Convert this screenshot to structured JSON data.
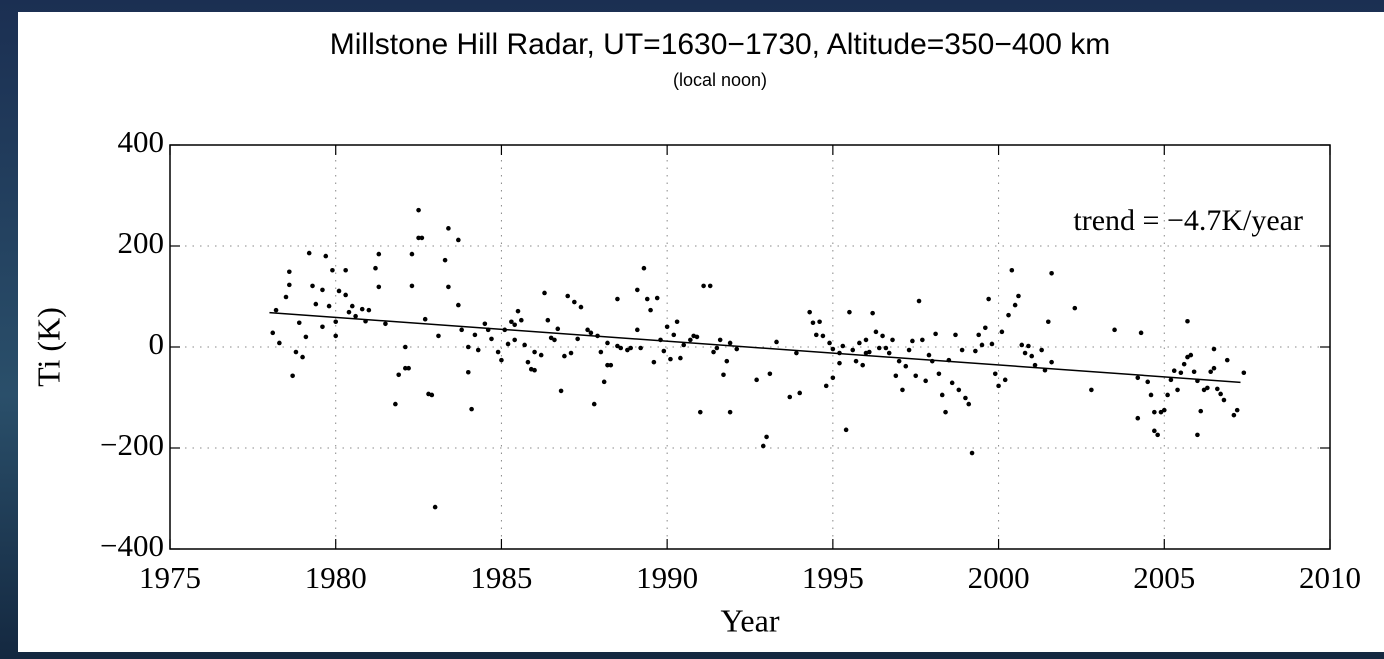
{
  "chart_data": {
    "type": "scatter",
    "title": "Millstone Hill Radar, UT=1630−1730, Altitude=350−400 km",
    "subtitle": "(local noon)",
    "x_label": "Year",
    "y_label": "Ti (K)",
    "annotation": "trend = −4.7K/year",
    "color": "#000000",
    "grid": true,
    "xlim": [
      1975,
      2010
    ],
    "xticks": [
      1975,
      1980,
      1985,
      1990,
      1995,
      2000,
      2005,
      2010
    ],
    "ylim": [
      -400,
      400
    ],
    "yticks": [
      {
        "value": -400,
        "label": "−400"
      },
      {
        "value": -200,
        "label": "−200"
      },
      0,
      200,
      400
    ],
    "x": [
      1978.1,
      1978.2,
      1978.3,
      1978.5,
      1978.6,
      1978.6,
      1978.7,
      1978.8,
      1978.9,
      1979.0,
      1979.1,
      1979.2,
      1979.3,
      1979.4,
      1979.6,
      1979.6,
      1979.7,
      1979.8,
      1979.9,
      1980.0,
      1980.0,
      1980.1,
      1980.3,
      1980.3,
      1980.4,
      1980.5,
      1980.6,
      1980.8,
      1980.9,
      1981.0,
      1981.2,
      1981.3,
      1981.3,
      1981.5,
      1981.8,
      1981.9,
      1982.1,
      1982.1,
      1982.2,
      1982.3,
      1982.3,
      1982.5,
      1982.5,
      1982.6,
      1982.7,
      1982.8,
      1982.9,
      1983.0,
      1983.1,
      1983.3,
      1983.4,
      1983.4,
      1983.7,
      1983.7,
      1983.8,
      1984.0,
      1984.0,
      1984.1,
      1984.2,
      1984.3,
      1984.5,
      1984.6,
      1984.7,
      1984.9,
      1985.0,
      1985.1,
      1985.2,
      1985.3,
      1985.4,
      1985.4,
      1985.5,
      1985.6,
      1985.7,
      1985.8,
      1985.9,
      1986.0,
      1986.0,
      1986.2,
      1986.3,
      1986.4,
      1986.5,
      1986.6,
      1986.7,
      1986.8,
      1986.9,
      1987.0,
      1987.1,
      1987.2,
      1987.3,
      1987.4,
      1987.6,
      1987.7,
      1987.8,
      1987.9,
      1988.0,
      1988.1,
      1988.2,
      1988.2,
      1988.3,
      1988.5,
      1988.5,
      1988.6,
      1988.8,
      1988.9,
      1989.1,
      1989.1,
      1989.2,
      1989.3,
      1989.4,
      1989.5,
      1989.6,
      1989.7,
      1989.8,
      1989.9,
      1990.0,
      1990.1,
      1990.2,
      1990.3,
      1990.4,
      1990.5,
      1990.7,
      1990.8,
      1990.9,
      1991.0,
      1991.1,
      1991.3,
      1991.4,
      1991.5,
      1991.6,
      1991.7,
      1991.8,
      1991.9,
      1991.9,
      1992.1,
      1992.7,
      1992.9,
      1993.0,
      1993.1,
      1993.3,
      1993.7,
      1993.9,
      1994.0,
      1994.3,
      1994.4,
      1994.5,
      1994.6,
      1994.7,
      1994.8,
      1994.9,
      1995.0,
      1995.0,
      1995.2,
      1995.2,
      1995.3,
      1995.4,
      1995.5,
      1995.6,
      1995.7,
      1995.8,
      1995.9,
      1996.0,
      1996.0,
      1996.1,
      1996.2,
      1996.3,
      1996.4,
      1996.5,
      1996.6,
      1996.7,
      1996.8,
      1996.9,
      1997.0,
      1997.1,
      1997.2,
      1997.3,
      1997.4,
      1997.5,
      1997.6,
      1997.7,
      1997.8,
      1997.9,
      1998.0,
      1998.1,
      1998.2,
      1998.3,
      1998.4,
      1998.5,
      1998.6,
      1998.7,
      1998.8,
      1998.9,
      1999.0,
      1999.1,
      1999.2,
      1999.3,
      1999.4,
      1999.5,
      1999.6,
      1999.7,
      1999.8,
      1999.9,
      2000.0,
      2000.1,
      2000.2,
      2000.3,
      2000.4,
      2000.5,
      2000.6,
      2000.7,
      2000.8,
      2000.9,
      2001.0,
      2001.1,
      2001.3,
      2001.4,
      2001.5,
      2001.6,
      2001.6,
      2002.3,
      2002.8,
      2003.5,
      2004.2,
      2004.2,
      2004.3,
      2004.5,
      2004.6,
      2004.7,
      2004.7,
      2004.8,
      2004.9,
      2005.0,
      2005.1,
      2005.2,
      2005.3,
      2005.4,
      2005.5,
      2005.6,
      2005.7,
      2005.7,
      2005.8,
      2005.9,
      2006.0,
      2006.0,
      2006.1,
      2006.2,
      2006.3,
      2006.4,
      2006.5,
      2006.5,
      2006.6,
      2006.7,
      2006.8,
      2006.9,
      2007.1,
      2007.2,
      2007.4
    ],
    "values": [
      28,
      73,
      8,
      99,
      149,
      123,
      -57,
      -10,
      48,
      -20,
      20,
      186,
      121,
      85,
      40,
      113,
      180,
      81,
      152,
      22,
      50,
      111,
      152,
      103,
      69,
      81,
      61,
      75,
      51,
      73,
      156,
      184,
      119,
      46,
      -113,
      -55,
      0,
      -42,
      -42,
      121,
      184,
      271,
      216,
      216,
      55,
      -93,
      -95,
      -317,
      22,
      172,
      119,
      235,
      212,
      83,
      34,
      0,
      -50,
      -123,
      24,
      -6,
      46,
      34,
      16,
      -10,
      -26,
      34,
      6,
      50,
      14,
      44,
      71,
      53,
      4,
      -30,
      -44,
      -46,
      -10,
      -16,
      107,
      53,
      18,
      14,
      36,
      -87,
      -18,
      101,
      -12,
      89,
      16,
      79,
      34,
      28,
      -113,
      22,
      -10,
      -69,
      -36,
      8,
      -36,
      2,
      95,
      -2,
      -6,
      -2,
      113,
      34,
      -2,
      156,
      95,
      73,
      -30,
      97,
      14,
      -8,
      40,
      -24,
      24,
      50,
      -22,
      4,
      14,
      22,
      20,
      -129,
      121,
      121,
      -10,
      -2,
      14,
      -55,
      -28,
      8,
      -129,
      -4,
      -65,
      -196,
      -178,
      -53,
      10,
      -99,
      -12,
      -91,
      69,
      48,
      24,
      50,
      22,
      -77,
      8,
      -4,
      -61,
      -12,
      -32,
      2,
      -164,
      69,
      -6,
      -28,
      8,
      -36,
      -12,
      14,
      -10,
      67,
      30,
      -2,
      22,
      -2,
      -12,
      14,
      -57,
      -28,
      -85,
      -38,
      -6,
      12,
      -57,
      91,
      14,
      -67,
      -16,
      -28,
      26,
      -53,
      -95,
      -129,
      -26,
      -71,
      24,
      -85,
      -6,
      -101,
      -113,
      -210,
      -8,
      24,
      4,
      38,
      95,
      6,
      -53,
      -77,
      30,
      -65,
      63,
      152,
      83,
      101,
      4,
      -12,
      2,
      -18,
      -36,
      -6,
      -46,
      50,
      146,
      -30,
      77,
      -85,
      34,
      -61,
      -141,
      28,
      -69,
      -95,
      -129,
      -166,
      -174,
      -129,
      -125,
      -95,
      -65,
      -47,
      -85,
      -51,
      -34,
      -20,
      51,
      -16,
      -49,
      -174,
      -67,
      -127,
      -85,
      -81,
      -49,
      -42,
      -4,
      -83,
      -93,
      -105,
      -26,
      -135,
      -125,
      -51
    ],
    "trend_line": {
      "x": [
        1978,
        2007.3
      ],
      "values": [
        68,
        -70
      ]
    }
  }
}
